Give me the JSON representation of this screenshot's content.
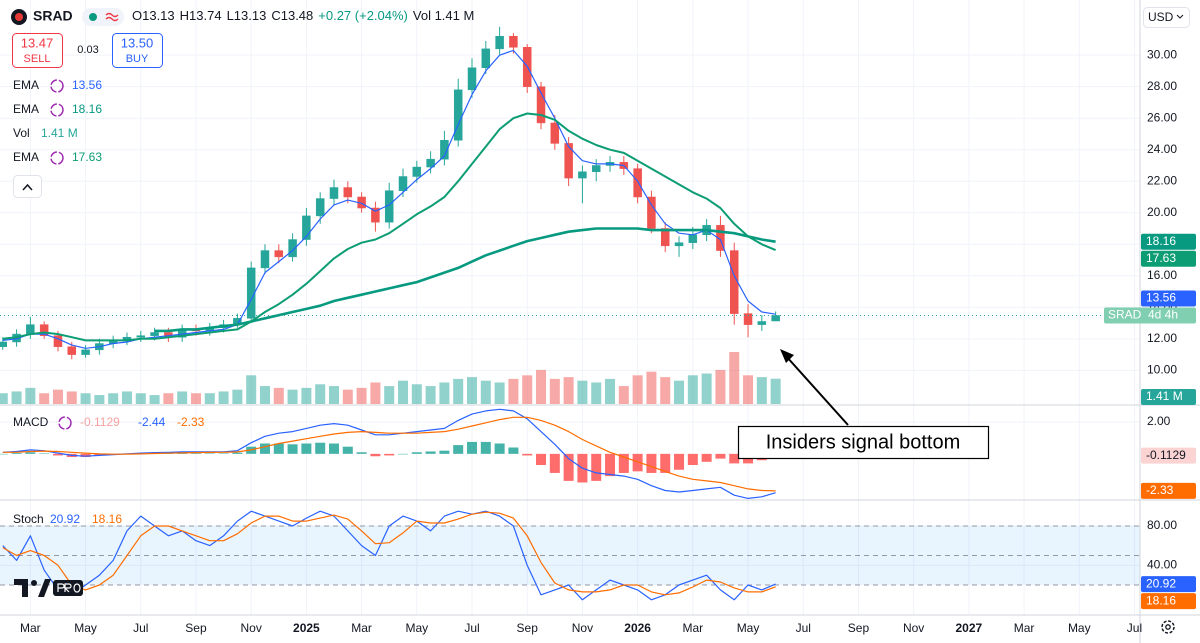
{
  "header": {
    "symbol": "SRAD",
    "quote": [
      "O13.13",
      "H13.74",
      "L13.13",
      "C13.48"
    ],
    "change": "+0.27 (+2.04%)",
    "volume": "Vol 1.41 M",
    "sell": {
      "price": "13.47",
      "label": "SELL"
    },
    "spread": "0.03",
    "buy": {
      "price": "13.50",
      "label": "BUY"
    },
    "currency": "USD",
    "countdown": "4d 4h"
  },
  "annotation": "Insiders signal bottom",
  "chart_data": [
    {
      "type": "candlestick",
      "x": [
        1,
        1.5,
        2,
        2.5,
        3,
        3.5,
        4,
        4.5,
        5,
        5.5,
        6,
        6.5,
        7,
        7.5,
        8,
        8.5,
        9,
        9.5,
        10,
        10.5,
        11,
        11.5,
        12,
        12.5,
        13,
        13.5,
        14,
        14.5,
        15,
        15.5,
        16,
        16.5,
        17,
        17.5,
        18,
        18.5,
        19,
        19.5,
        20,
        20.5,
        21,
        21.5,
        22,
        22.5,
        23,
        23.5,
        24,
        24.5,
        25,
        25.5,
        26,
        26.5,
        27,
        27.5,
        28,
        28.5,
        29
      ],
      "open": [
        11.5,
        11.8,
        12.3,
        12.9,
        12.2,
        11.5,
        11.0,
        11.3,
        11.7,
        11.9,
        12.1,
        12.2,
        12.4,
        12.1,
        12.6,
        12.5,
        12.7,
        12.9,
        13.3,
        16.5,
        17.6,
        17.2,
        18.3,
        19.8,
        20.9,
        21.6,
        21.0,
        20.3,
        19.4,
        21.4,
        22.3,
        22.9,
        23.4,
        24.6,
        27.8,
        29.2,
        30.4,
        31.2,
        30.5,
        28.0,
        25.7,
        24.4,
        22.2,
        22.6,
        23.0,
        23.2,
        22.8,
        21.0,
        19.0,
        17.9,
        18.1,
        18.6,
        19.2,
        17.6,
        13.6,
        12.9,
        13.13
      ],
      "high": [
        12.1,
        12.6,
        13.4,
        13.1,
        12.5,
        11.8,
        11.6,
        12.0,
        12.2,
        12.4,
        12.5,
        12.7,
        12.7,
        12.9,
        12.9,
        13.0,
        13.2,
        13.6,
        16.9,
        18.0,
        18.0,
        18.7,
        20.3,
        21.3,
        22.1,
        22.0,
        21.3,
        20.7,
        21.9,
        22.8,
        23.3,
        23.9,
        25.2,
        28.5,
        29.8,
        30.9,
        31.8,
        31.4,
        30.7,
        28.3,
        26.2,
        24.8,
        23.0,
        23.4,
        23.6,
        23.6,
        23.1,
        21.4,
        19.4,
        18.5,
        19.1,
        19.6,
        19.8,
        18.1,
        14.2,
        13.5,
        13.74
      ],
      "low": [
        11.3,
        11.5,
        12.0,
        12.0,
        11.2,
        10.7,
        10.8,
        11.0,
        11.4,
        11.6,
        11.8,
        11.9,
        11.8,
        11.8,
        12.2,
        12.2,
        12.4,
        12.7,
        13.0,
        16.1,
        16.8,
        16.9,
        17.9,
        19.3,
        20.5,
        20.6,
        20.0,
        18.8,
        19.0,
        21.0,
        21.9,
        22.5,
        23.0,
        24.2,
        27.3,
        28.8,
        30.0,
        30.1,
        27.6,
        25.3,
        24.0,
        21.7,
        20.6,
        22.0,
        22.6,
        22.4,
        20.6,
        18.7,
        17.5,
        17.2,
        17.7,
        18.2,
        17.2,
        12.9,
        12.1,
        12.5,
        13.13
      ],
      "close": [
        11.8,
        12.3,
        12.9,
        12.2,
        11.5,
        11.0,
        11.3,
        11.7,
        11.9,
        12.1,
        12.2,
        12.4,
        12.1,
        12.6,
        12.5,
        12.7,
        12.9,
        13.3,
        16.5,
        17.6,
        17.2,
        18.3,
        19.8,
        20.9,
        21.6,
        21.0,
        20.3,
        19.4,
        21.4,
        22.3,
        22.9,
        23.4,
        24.6,
        27.8,
        29.2,
        30.4,
        31.2,
        30.5,
        28.0,
        25.7,
        24.4,
        22.2,
        22.6,
        23.0,
        23.2,
        22.8,
        21.0,
        19.0,
        17.9,
        18.1,
        18.6,
        19.2,
        17.6,
        13.6,
        12.9,
        13.1,
        13.48
      ],
      "up_color": "#26a69a",
      "down_color": "#ef5350",
      "series": [
        {
          "name": "EMA",
          "color": "#2962ff",
          "line_width": 1.2,
          "values": [
            11.9,
            12.0,
            12.3,
            12.3,
            12.0,
            11.6,
            11.4,
            11.5,
            11.7,
            11.8,
            12.0,
            12.1,
            12.2,
            12.3,
            12.4,
            12.5,
            12.6,
            12.9,
            14.5,
            16.2,
            16.9,
            17.6,
            18.5,
            19.6,
            20.5,
            20.8,
            20.6,
            20.1,
            20.5,
            21.3,
            22.1,
            22.8,
            23.6,
            25.6,
            27.5,
            29.0,
            30.0,
            30.3,
            29.3,
            27.6,
            26.0,
            24.2,
            23.3,
            23.1,
            23.1,
            23.0,
            22.0,
            20.5,
            19.3,
            18.7,
            18.6,
            18.9,
            18.3,
            16.0,
            14.4,
            13.7,
            13.56
          ]
        },
        {
          "name": "EMA",
          "color": "#089981",
          "line_width": 2.6,
          "values": [
            null,
            null,
            null,
            null,
            null,
            null,
            null,
            null,
            null,
            null,
            null,
            12.5,
            12.5,
            12.6,
            12.6,
            12.7,
            12.8,
            12.9,
            13.1,
            13.3,
            13.5,
            13.7,
            13.9,
            14.1,
            14.4,
            14.6,
            14.8,
            15.0,
            15.2,
            15.4,
            15.6,
            15.9,
            16.2,
            16.5,
            16.9,
            17.3,
            17.6,
            17.9,
            18.2,
            18.4,
            18.6,
            18.8,
            18.9,
            19.0,
            19.0,
            19.0,
            19.0,
            18.9,
            18.9,
            18.9,
            18.9,
            18.9,
            18.8,
            18.7,
            18.5,
            18.3,
            18.16
          ]
        },
        {
          "name": "EMA",
          "color": "#0d9d74",
          "line_width": 2,
          "values": [
            12.0,
            12.1,
            12.3,
            12.4,
            12.3,
            12.1,
            11.9,
            11.9,
            11.9,
            11.9,
            12.0,
            12.0,
            12.1,
            12.2,
            12.3,
            12.4,
            12.5,
            12.6,
            13.1,
            13.7,
            14.2,
            14.8,
            15.5,
            16.3,
            17.1,
            17.7,
            18.1,
            18.3,
            18.7,
            19.3,
            19.9,
            20.4,
            21.0,
            22.0,
            23.1,
            24.2,
            25.3,
            26.0,
            26.3,
            26.2,
            25.9,
            25.2,
            24.7,
            24.3,
            24.0,
            23.8,
            23.3,
            22.8,
            22.3,
            21.8,
            21.3,
            20.9,
            20.3,
            19.3,
            18.5,
            18.0,
            17.63
          ]
        }
      ],
      "volume": {
        "name": "Vol",
        "value_label": "1.41 M",
        "values": [
          0.6,
          0.7,
          0.9,
          0.6,
          0.8,
          0.7,
          0.6,
          0.5,
          0.6,
          0.7,
          0.6,
          0.5,
          0.6,
          0.7,
          0.6,
          0.6,
          0.7,
          0.8,
          1.6,
          1.0,
          0.9,
          0.8,
          0.9,
          1.1,
          1.0,
          0.8,
          0.9,
          1.2,
          1.0,
          1.3,
          1.1,
          1.0,
          1.2,
          1.4,
          1.5,
          1.3,
          1.2,
          1.4,
          1.6,
          1.9,
          1.4,
          1.5,
          1.3,
          1.2,
          1.4,
          1.0,
          1.6,
          1.8,
          1.5,
          1.3,
          1.6,
          1.7,
          1.9,
          2.9,
          1.6,
          1.5,
          1.41
        ]
      },
      "xlim": [
        0.9,
        42.2
      ],
      "xticks": [
        {
          "value": 2,
          "label": "Mar"
        },
        {
          "value": 4,
          "label": "May"
        },
        {
          "value": 6,
          "label": "Jul"
        },
        {
          "value": 8,
          "label": "Sep"
        },
        {
          "value": 10,
          "label": "Nov"
        },
        {
          "value": 12,
          "label": "2025"
        },
        {
          "value": 14,
          "label": "Mar"
        },
        {
          "value": 16,
          "label": "May"
        },
        {
          "value": 18,
          "label": "Jul"
        },
        {
          "value": 20,
          "label": "Sep"
        },
        {
          "value": 22,
          "label": "Nov"
        },
        {
          "value": 24,
          "label": "2026"
        },
        {
          "value": 26,
          "label": "Mar"
        },
        {
          "value": 28,
          "label": "May"
        },
        {
          "value": 30,
          "label": "Jul"
        },
        {
          "value": 32,
          "label": "Sep"
        },
        {
          "value": 34,
          "label": "Nov"
        },
        {
          "value": 36,
          "label": "2027"
        },
        {
          "value": 38,
          "label": "Mar"
        },
        {
          "value": 40,
          "label": "May"
        },
        {
          "value": 42,
          "label": "Jul"
        }
      ],
      "ylim": [
        7.8,
        33.5
      ],
      "yticks": [
        {
          "value": 10,
          "label": "10.00"
        },
        {
          "value": 12,
          "label": "12.00"
        },
        {
          "value": 14,
          "label": "14.00"
        },
        {
          "value": 16,
          "label": "16.00"
        },
        {
          "value": 18,
          "label": "18.00"
        },
        {
          "value": 20,
          "label": "20.00"
        },
        {
          "value": 22,
          "label": "22.00"
        },
        {
          "value": 24,
          "label": "24.00"
        },
        {
          "value": 26,
          "label": "26.00"
        },
        {
          "value": 28,
          "label": "28.00"
        },
        {
          "value": 30,
          "label": "30.00"
        }
      ],
      "grid": true
    },
    {
      "type": "macd",
      "name": "MACD",
      "macd": {
        "color": "#2962ff",
        "values": [
          0.1,
          0.15,
          0.25,
          0.2,
          0.05,
          -0.1,
          -0.15,
          -0.1,
          -0.05,
          0,
          0.05,
          0.08,
          0.1,
          0.12,
          0.12,
          0.12,
          0.13,
          0.2,
          0.7,
          1.1,
          1.3,
          1.4,
          1.6,
          1.8,
          1.9,
          1.8,
          1.5,
          1.2,
          1.2,
          1.3,
          1.4,
          1.5,
          1.6,
          2.1,
          2.5,
          2.7,
          2.8,
          2.7,
          2.2,
          1.4,
          0.6,
          -0.3,
          -0.9,
          -1.2,
          -1.3,
          -1.4,
          -1.6,
          -2.0,
          -2.3,
          -2.4,
          -2.3,
          -2.2,
          -2.1,
          -2.6,
          -2.8,
          -2.7,
          -2.44
        ]
      },
      "signal": {
        "color": "#ff6d00",
        "values": [
          0.1,
          0.1,
          0.15,
          0.17,
          0.15,
          0.1,
          0.05,
          0.0,
          -0.02,
          -0.02,
          0,
          0.02,
          0.04,
          0.06,
          0.08,
          0.09,
          0.1,
          0.12,
          0.25,
          0.45,
          0.65,
          0.8,
          0.95,
          1.1,
          1.25,
          1.35,
          1.4,
          1.35,
          1.3,
          1.3,
          1.3,
          1.35,
          1.4,
          1.55,
          1.75,
          1.95,
          2.15,
          2.3,
          2.3,
          2.1,
          1.8,
          1.4,
          0.9,
          0.5,
          0.1,
          -0.2,
          -0.5,
          -0.8,
          -1.1,
          -1.4,
          -1.6,
          -1.7,
          -1.8,
          -2.0,
          -2.2,
          -2.3,
          -2.33
        ]
      },
      "histogram": {
        "up_color": "#26a69a",
        "down_color": "#ff5252",
        "values": [
          0,
          0.05,
          0.1,
          0.03,
          -0.1,
          -0.2,
          -0.2,
          -0.1,
          -0.03,
          0.02,
          0.05,
          0.06,
          0.06,
          0.06,
          0.04,
          0.03,
          0.03,
          0.08,
          0.45,
          0.65,
          0.65,
          0.6,
          0.65,
          0.7,
          0.65,
          0.45,
          0.1,
          -0.15,
          -0.1,
          0,
          0.1,
          0.15,
          0.2,
          0.55,
          0.75,
          0.75,
          0.65,
          0.4,
          -0.1,
          -0.7,
          -1.2,
          -1.7,
          -1.8,
          -1.7,
          -1.4,
          -1.2,
          -1.1,
          -1.2,
          -1.2,
          -1.0,
          -0.7,
          -0.5,
          -0.3,
          -0.6,
          -0.6,
          -0.4,
          -0.1129
        ]
      },
      "ylim": [
        -2.9,
        3.07
      ],
      "yticks": [
        {
          "value": 2,
          "label": "2.00"
        }
      ]
    },
    {
      "type": "stochastic",
      "name": "Stoch",
      "k": {
        "color": "#2962ff",
        "values": [
          60,
          45,
          70,
          35,
          15,
          10,
          20,
          30,
          45,
          75,
          90,
          80,
          70,
          75,
          65,
          60,
          70,
          85,
          95,
          90,
          85,
          80,
          88,
          95,
          90,
          75,
          60,
          50,
          80,
          90,
          85,
          75,
          90,
          95,
          92,
          95,
          90,
          80,
          40,
          10,
          15,
          20,
          5,
          15,
          25,
          20,
          15,
          5,
          10,
          20,
          25,
          30,
          15,
          5,
          20,
          15,
          20.92
        ]
      },
      "d": {
        "color": "#ff6d00",
        "values": [
          58,
          50,
          55,
          50,
          40,
          20,
          15,
          20,
          30,
          50,
          70,
          80,
          80,
          75,
          70,
          65,
          65,
          72,
          83,
          90,
          90,
          85,
          85,
          88,
          91,
          87,
          75,
          62,
          63,
          73,
          85,
          83,
          83,
          87,
          92,
          94,
          93,
          88,
          70,
          43,
          22,
          15,
          13,
          13,
          15,
          20,
          20,
          13,
          10,
          12,
          18,
          25,
          23,
          17,
          13,
          13,
          18.16
        ]
      },
      "bands": [
        20,
        80
      ],
      "midline": 50,
      "band_color": "#2196f3",
      "ylim": [
        -10.5,
        106.4
      ],
      "yticks": [
        {
          "value": 80,
          "label": "80.00"
        },
        {
          "value": 40,
          "label": "40.00"
        }
      ]
    }
  ]
}
